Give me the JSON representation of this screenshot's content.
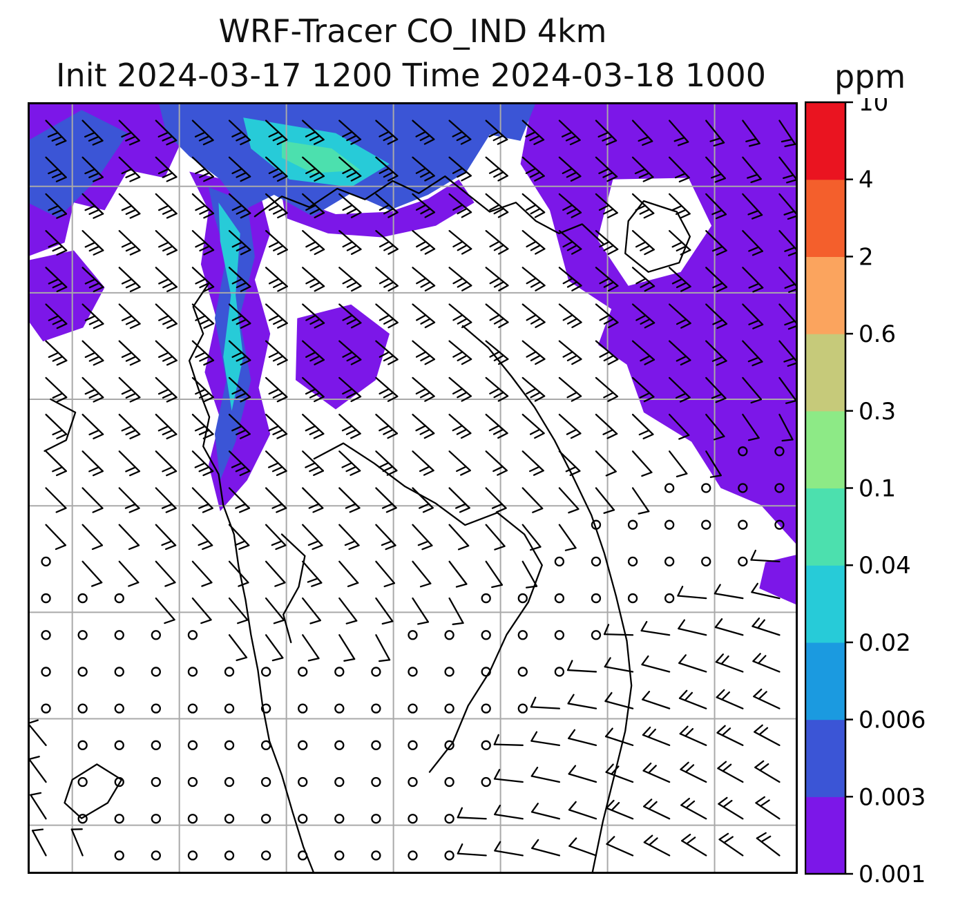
{
  "header": {
    "title": "WRF-Tracer CO_IND 4km",
    "subtitle": "Init 2024-03-17 1200 Time 2024-03-18 1000",
    "unit": "ppm"
  },
  "chart_data": {
    "type": "heatmap",
    "title": "WRF-Tracer CO_IND 4km",
    "init_time": "2024-03-17 1200",
    "valid_time": "2024-03-18 1000",
    "units": "ppm",
    "grid": true,
    "legend_position": "right-colorbar",
    "colorbar": {
      "orientation": "vertical",
      "levels": [
        0.001,
        0.003,
        0.006,
        0.02,
        0.04,
        0.1,
        0.3,
        0.6,
        2,
        4,
        10
      ],
      "tick_labels": [
        "0.001",
        "0.003",
        "0.006",
        "0.02",
        "0.04",
        "0.1",
        "0.3",
        "0.6",
        "2",
        "4",
        "10"
      ],
      "colors": [
        "#7c17e8",
        "#3b55d6",
        "#1b9ae0",
        "#27cbd8",
        "#4ce0ae",
        "#8dea86",
        "#c6ca7a",
        "#fba45e",
        "#f45f2c",
        "#ea1420"
      ]
    },
    "grid_x": [
      0.058,
      0.197,
      0.336,
      0.475,
      0.614,
      0.753,
      0.892
    ],
    "grid_y": [
      0.109,
      0.247,
      0.385,
      0.523,
      0.661,
      0.799,
      0.937
    ],
    "overlays": [
      "tracer-filled-contours",
      "wind-barbs",
      "coastlines"
    ],
    "plumes": [
      {
        "color": 0,
        "points": [
          [
            0.655,
            0.0
          ],
          [
            1.0,
            0.0
          ],
          [
            1.0,
            0.575
          ],
          [
            0.952,
            0.522
          ],
          [
            0.9,
            0.5
          ],
          [
            0.862,
            0.44
          ],
          [
            0.8,
            0.402
          ],
          [
            0.778,
            0.34
          ],
          [
            0.72,
            0.3
          ],
          [
            0.7,
            0.222
          ],
          [
            0.678,
            0.14
          ],
          [
            0.64,
            0.08
          ]
        ]
      },
      {
        "color": -1,
        "points": [
          [
            0.76,
            0.1
          ],
          [
            0.858,
            0.098
          ],
          [
            0.888,
            0.16
          ],
          [
            0.848,
            0.22
          ],
          [
            0.78,
            0.238
          ],
          [
            0.74,
            0.178
          ]
        ]
      },
      {
        "color": -1,
        "points": [
          [
            0.7,
            0.23
          ],
          [
            0.758,
            0.268
          ],
          [
            0.738,
            0.322
          ],
          [
            0.688,
            0.3
          ]
        ]
      },
      {
        "color": 0,
        "points": [
          [
            0.958,
            0.596
          ],
          [
            1.0,
            0.586
          ],
          [
            1.0,
            0.652
          ],
          [
            0.95,
            0.63
          ]
        ]
      },
      {
        "color": 0,
        "points": [
          [
            0.0,
            0.0
          ],
          [
            0.26,
            0.0
          ],
          [
            0.242,
            0.058
          ],
          [
            0.2,
            0.05
          ],
          [
            0.178,
            0.098
          ],
          [
            0.13,
            0.088
          ],
          [
            0.1,
            0.14
          ],
          [
            0.06,
            0.13
          ],
          [
            0.048,
            0.182
          ],
          [
            0.0,
            0.2
          ]
        ]
      },
      {
        "color": 0,
        "points": [
          [
            0.0,
            0.205
          ],
          [
            0.06,
            0.192
          ],
          [
            0.1,
            0.24
          ],
          [
            0.072,
            0.292
          ],
          [
            0.02,
            0.31
          ],
          [
            0.0,
            0.282
          ]
        ]
      },
      {
        "color": 0,
        "points": [
          [
            0.21,
            0.09
          ],
          [
            0.3,
            0.11
          ],
          [
            0.315,
            0.17
          ],
          [
            0.295,
            0.23
          ],
          [
            0.315,
            0.3
          ],
          [
            0.3,
            0.37
          ],
          [
            0.315,
            0.43
          ],
          [
            0.285,
            0.49
          ],
          [
            0.25,
            0.53
          ],
          [
            0.235,
            0.47
          ],
          [
            0.25,
            0.41
          ],
          [
            0.23,
            0.35
          ],
          [
            0.245,
            0.28
          ],
          [
            0.225,
            0.21
          ],
          [
            0.235,
            0.14
          ]
        ]
      },
      {
        "color": 0,
        "points": [
          [
            0.35,
            0.28
          ],
          [
            0.42,
            0.262
          ],
          [
            0.47,
            0.3
          ],
          [
            0.452,
            0.36
          ],
          [
            0.4,
            0.398
          ],
          [
            0.348,
            0.36
          ]
        ]
      },
      {
        "color": 0,
        "points": [
          [
            0.33,
            0.12
          ],
          [
            0.4,
            0.145
          ],
          [
            0.47,
            0.142
          ],
          [
            0.52,
            0.125
          ],
          [
            0.56,
            0.1
          ],
          [
            0.58,
            0.13
          ],
          [
            0.53,
            0.16
          ],
          [
            0.46,
            0.175
          ],
          [
            0.39,
            0.17
          ],
          [
            0.335,
            0.15
          ]
        ]
      },
      {
        "color": 1,
        "points": [
          [
            0.17,
            0.0
          ],
          [
            0.66,
            0.0
          ],
          [
            0.64,
            0.05
          ],
          [
            0.6,
            0.042
          ],
          [
            0.57,
            0.09
          ],
          [
            0.52,
            0.12
          ],
          [
            0.47,
            0.14
          ],
          [
            0.42,
            0.118
          ],
          [
            0.37,
            0.148
          ],
          [
            0.32,
            0.12
          ],
          [
            0.28,
            0.14
          ],
          [
            0.25,
            0.1
          ],
          [
            0.21,
            0.07
          ],
          [
            0.18,
            0.04
          ]
        ]
      },
      {
        "color": 1,
        "points": [
          [
            0.0,
            0.05
          ],
          [
            0.07,
            0.01
          ],
          [
            0.13,
            0.04
          ],
          [
            0.09,
            0.1
          ],
          [
            0.04,
            0.15
          ],
          [
            0.0,
            0.13
          ]
        ]
      },
      {
        "color": 1,
        "points": [
          [
            0.235,
            0.11
          ],
          [
            0.285,
            0.13
          ],
          [
            0.295,
            0.2
          ],
          [
            0.275,
            0.28
          ],
          [
            0.29,
            0.36
          ],
          [
            0.27,
            0.44
          ],
          [
            0.25,
            0.49
          ],
          [
            0.243,
            0.43
          ],
          [
            0.258,
            0.36
          ],
          [
            0.243,
            0.28
          ],
          [
            0.258,
            0.2
          ],
          [
            0.243,
            0.15
          ]
        ]
      },
      {
        "color": 3,
        "points": [
          [
            0.28,
            0.02
          ],
          [
            0.4,
            0.04
          ],
          [
            0.47,
            0.08
          ],
          [
            0.42,
            0.11
          ],
          [
            0.34,
            0.1
          ],
          [
            0.29,
            0.06
          ]
        ]
      },
      {
        "color": 4,
        "points": [
          [
            0.33,
            0.05
          ],
          [
            0.395,
            0.06
          ],
          [
            0.432,
            0.088
          ],
          [
            0.37,
            0.092
          ],
          [
            0.33,
            0.072
          ]
        ]
      },
      {
        "color": 3,
        "points": [
          [
            0.248,
            0.13
          ],
          [
            0.276,
            0.17
          ],
          [
            0.27,
            0.25
          ],
          [
            0.28,
            0.33
          ],
          [
            0.265,
            0.4
          ],
          [
            0.254,
            0.33
          ],
          [
            0.264,
            0.25
          ],
          [
            0.25,
            0.18
          ]
        ]
      }
    ],
    "coastlines": [
      {
        "closed": false,
        "points": [
          [
            0.235,
            0.235
          ],
          [
            0.215,
            0.265
          ],
          [
            0.228,
            0.3
          ],
          [
            0.21,
            0.335
          ],
          [
            0.222,
            0.372
          ],
          [
            0.236,
            0.408
          ],
          [
            0.228,
            0.446
          ],
          [
            0.248,
            0.482
          ],
          [
            0.254,
            0.522
          ],
          [
            0.268,
            0.56
          ],
          [
            0.274,
            0.602
          ],
          [
            0.283,
            0.645
          ],
          [
            0.29,
            0.69
          ],
          [
            0.299,
            0.736
          ],
          [
            0.305,
            0.782
          ],
          [
            0.314,
            0.828
          ],
          [
            0.33,
            0.872
          ],
          [
            0.344,
            0.92
          ],
          [
            0.358,
            0.965
          ],
          [
            0.372,
            1.0
          ]
        ]
      },
      {
        "closed": false,
        "points": [
          [
            0.565,
            0.29
          ],
          [
            0.598,
            0.318
          ],
          [
            0.628,
            0.355
          ],
          [
            0.658,
            0.395
          ],
          [
            0.684,
            0.438
          ],
          [
            0.708,
            0.485
          ],
          [
            0.732,
            0.535
          ],
          [
            0.749,
            0.585
          ],
          [
            0.764,
            0.64
          ],
          [
            0.778,
            0.698
          ],
          [
            0.784,
            0.756
          ],
          [
            0.776,
            0.815
          ],
          [
            0.762,
            0.872
          ],
          [
            0.747,
            0.932
          ],
          [
            0.733,
            1.0
          ]
        ]
      },
      {
        "closed": false,
        "points": [
          [
            0.295,
            0.148
          ],
          [
            0.33,
            0.122
          ],
          [
            0.366,
            0.136
          ],
          [
            0.402,
            0.112
          ],
          [
            0.438,
            0.126
          ],
          [
            0.474,
            0.102
          ],
          [
            0.508,
            0.118
          ],
          [
            0.542,
            0.096
          ],
          [
            0.572,
            0.12
          ],
          [
            0.6,
            0.142
          ],
          [
            0.634,
            0.13
          ],
          [
            0.66,
            0.154
          ],
          [
            0.69,
            0.17
          ],
          [
            0.72,
            0.158
          ],
          [
            0.748,
            0.184
          ]
        ]
      },
      {
        "closed": true,
        "points": [
          [
            0.8,
            0.128
          ],
          [
            0.843,
            0.142
          ],
          [
            0.86,
            0.174
          ],
          [
            0.846,
            0.208
          ],
          [
            0.806,
            0.22
          ],
          [
            0.776,
            0.196
          ],
          [
            0.78,
            0.154
          ]
        ]
      },
      {
        "closed": false,
        "points": [
          [
            0.372,
            0.462
          ],
          [
            0.41,
            0.442
          ],
          [
            0.45,
            0.468
          ],
          [
            0.49,
            0.498
          ],
          [
            0.53,
            0.52
          ],
          [
            0.568,
            0.548
          ],
          [
            0.61,
            0.532
          ],
          [
            0.645,
            0.56
          ],
          [
            0.668,
            0.6
          ],
          [
            0.65,
            0.648
          ],
          [
            0.622,
            0.69
          ],
          [
            0.6,
            0.738
          ],
          [
            0.572,
            0.782
          ],
          [
            0.552,
            0.83
          ],
          [
            0.522,
            0.868
          ]
        ]
      },
      {
        "closed": true,
        "points": [
          [
            0.058,
            0.878
          ],
          [
            0.09,
            0.858
          ],
          [
            0.122,
            0.878
          ],
          [
            0.104,
            0.908
          ],
          [
            0.07,
            0.928
          ],
          [
            0.048,
            0.908
          ]
        ]
      },
      {
        "closed": false,
        "points": [
          [
            0.03,
            0.385
          ],
          [
            0.062,
            0.402
          ],
          [
            0.05,
            0.438
          ],
          [
            0.022,
            0.452
          ]
        ]
      },
      {
        "closed": false,
        "points": [
          [
            0.33,
            0.56
          ],
          [
            0.36,
            0.588
          ],
          [
            0.352,
            0.628
          ],
          [
            0.332,
            0.664
          ],
          [
            0.342,
            0.7
          ]
        ]
      }
    ],
    "barbs": {
      "cols": 21,
      "rows": 21,
      "calm_threshold": 0.6,
      "staff_length": 41,
      "tick_length": 15
    }
  }
}
